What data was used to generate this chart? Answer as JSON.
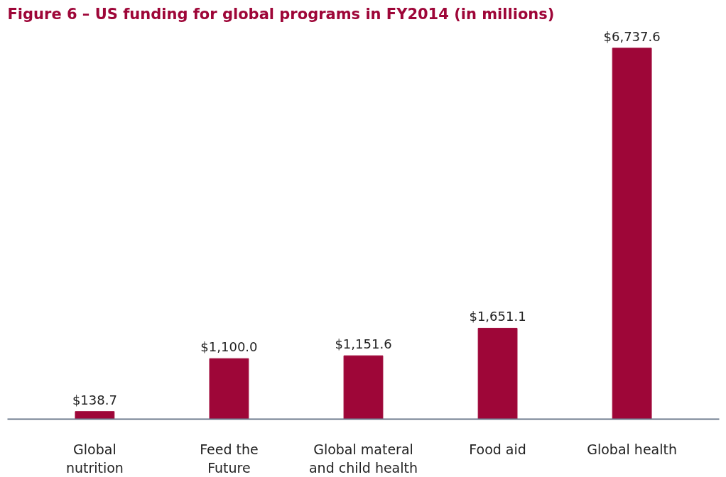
{
  "chart_data": {
    "type": "bar",
    "title": "Figure 6 – US funding for global programs in FY2014 (in millions)",
    "categories": [
      "Global\nnutrition",
      "Feed the\nFuture",
      "Global materal\nand child health",
      "Food aid",
      "Global health"
    ],
    "values": [
      138.7,
      1100.0,
      1151.6,
      1651.1,
      6737.6
    ],
    "value_labels": [
      "$138.7",
      "$1,100.0",
      "$1,151.6",
      "$1,651.1",
      "$6,737.6"
    ],
    "color": "#9e0638",
    "grid": false
  }
}
